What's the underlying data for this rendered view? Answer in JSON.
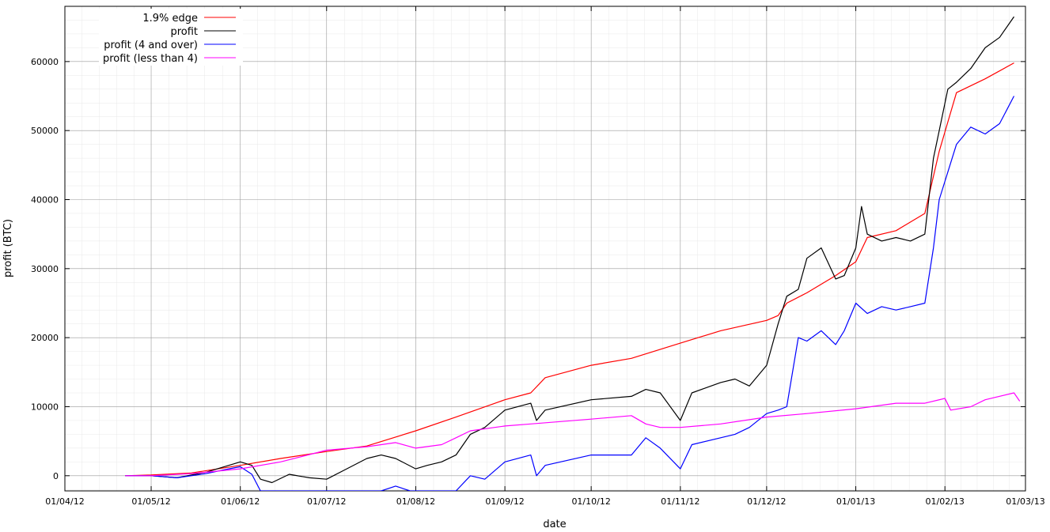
{
  "chart_data": {
    "type": "line",
    "xlabel": "date",
    "ylabel": "profit (BTC)",
    "x_ticks": [
      "01/04/12",
      "01/05/12",
      "01/06/12",
      "01/07/12",
      "01/08/12",
      "01/09/12",
      "01/10/12",
      "01/11/12",
      "01/12/12",
      "01/01/13",
      "01/02/13",
      "01/03/13"
    ],
    "y_ticks": [
      0,
      10000,
      20000,
      30000,
      40000,
      50000,
      60000
    ],
    "xlim": [
      "2012-04-01",
      "2013-03-01"
    ],
    "ylim": [
      -2200,
      68000
    ],
    "grid": true,
    "legend_position": "top-left",
    "colors": {
      "edge": "#ff0000",
      "profit": "#000000",
      "over4": "#0000ff",
      "under4": "#ff00ff"
    },
    "series": [
      {
        "name": "1.9% edge",
        "color": "#ff0000",
        "points": [
          [
            "2012-04-22",
            0
          ],
          [
            "2012-05-01",
            100
          ],
          [
            "2012-05-15",
            400
          ],
          [
            "2012-06-01",
            1500
          ],
          [
            "2012-06-15",
            2500
          ],
          [
            "2012-07-01",
            3500
          ],
          [
            "2012-07-15",
            4300
          ],
          [
            "2012-08-01",
            6500
          ],
          [
            "2012-08-15",
            8500
          ],
          [
            "2012-09-01",
            11000
          ],
          [
            "2012-09-10",
            12000
          ],
          [
            "2012-09-15",
            14200
          ],
          [
            "2012-10-01",
            16000
          ],
          [
            "2012-10-15",
            17000
          ],
          [
            "2012-11-01",
            19200
          ],
          [
            "2012-11-15",
            21000
          ],
          [
            "2012-12-01",
            22500
          ],
          [
            "2012-12-05",
            23200
          ],
          [
            "2012-12-08",
            25000
          ],
          [
            "2012-12-15",
            26500
          ],
          [
            "2012-12-25",
            29000
          ],
          [
            "2013-01-01",
            31000
          ],
          [
            "2013-01-05",
            34500
          ],
          [
            "2013-01-15",
            35500
          ],
          [
            "2013-01-25",
            38000
          ],
          [
            "2013-01-30",
            47000
          ],
          [
            "2013-02-05",
            55500
          ],
          [
            "2013-02-15",
            57500
          ],
          [
            "2013-02-25",
            59800
          ]
        ]
      },
      {
        "name": "profit",
        "color": "#000000",
        "points": [
          [
            "2012-04-22",
            0
          ],
          [
            "2012-05-01",
            0
          ],
          [
            "2012-05-10",
            -300
          ],
          [
            "2012-05-20",
            500
          ],
          [
            "2012-05-28",
            1500
          ],
          [
            "2012-06-01",
            2000
          ],
          [
            "2012-06-05",
            1500
          ],
          [
            "2012-06-08",
            -500
          ],
          [
            "2012-06-12",
            -1000
          ],
          [
            "2012-06-18",
            200
          ],
          [
            "2012-06-25",
            -300
          ],
          [
            "2012-07-01",
            -500
          ],
          [
            "2012-07-08",
            1000
          ],
          [
            "2012-07-15",
            2500
          ],
          [
            "2012-07-20",
            3000
          ],
          [
            "2012-07-25",
            2500
          ],
          [
            "2012-08-01",
            1000
          ],
          [
            "2012-08-05",
            1500
          ],
          [
            "2012-08-10",
            2000
          ],
          [
            "2012-08-15",
            3000
          ],
          [
            "2012-08-20",
            6000
          ],
          [
            "2012-08-25",
            7000
          ],
          [
            "2012-09-01",
            9500
          ],
          [
            "2012-09-10",
            10500
          ],
          [
            "2012-09-12",
            8000
          ],
          [
            "2012-09-15",
            9500
          ],
          [
            "2012-10-01",
            11000
          ],
          [
            "2012-10-15",
            11500
          ],
          [
            "2012-10-20",
            12500
          ],
          [
            "2012-10-25",
            12000
          ],
          [
            "2012-11-01",
            8000
          ],
          [
            "2012-11-05",
            12000
          ],
          [
            "2012-11-15",
            13500
          ],
          [
            "2012-11-20",
            14000
          ],
          [
            "2012-11-25",
            13000
          ],
          [
            "2012-12-01",
            16000
          ],
          [
            "2012-12-05",
            22000
          ],
          [
            "2012-12-08",
            26000
          ],
          [
            "2012-12-12",
            27000
          ],
          [
            "2012-12-15",
            31500
          ],
          [
            "2012-12-20",
            33000
          ],
          [
            "2012-12-25",
            28500
          ],
          [
            "2012-12-28",
            29000
          ],
          [
            "2013-01-01",
            33000
          ],
          [
            "2013-01-03",
            39000
          ],
          [
            "2013-01-05",
            35000
          ],
          [
            "2013-01-10",
            34000
          ],
          [
            "2013-01-15",
            34500
          ],
          [
            "2013-01-20",
            34000
          ],
          [
            "2013-01-25",
            35000
          ],
          [
            "2013-01-28",
            46000
          ],
          [
            "2013-01-30",
            50000
          ],
          [
            "2013-02-02",
            56000
          ],
          [
            "2013-02-05",
            57000
          ],
          [
            "2013-02-10",
            59000
          ],
          [
            "2013-02-15",
            62000
          ],
          [
            "2013-02-20",
            63500
          ],
          [
            "2013-02-25",
            66500
          ]
        ]
      },
      {
        "name": "profit (4 and over)",
        "color": "#0000ff",
        "points": [
          [
            "2012-04-22",
            0
          ],
          [
            "2012-05-01",
            0
          ],
          [
            "2012-05-10",
            -300
          ],
          [
            "2012-05-20",
            300
          ],
          [
            "2012-05-28",
            1000
          ],
          [
            "2012-06-01",
            1300
          ],
          [
            "2012-06-05",
            200
          ],
          [
            "2012-06-08",
            -2200
          ],
          [
            "2012-07-20",
            -2200
          ],
          [
            "2012-07-25",
            -1500
          ],
          [
            "2012-07-30",
            -2200
          ],
          [
            "2012-08-15",
            -2200
          ],
          [
            "2012-08-20",
            0
          ],
          [
            "2012-08-25",
            -500
          ],
          [
            "2012-09-01",
            2000
          ],
          [
            "2012-09-10",
            3000
          ],
          [
            "2012-09-12",
            0
          ],
          [
            "2012-09-15",
            1500
          ],
          [
            "2012-10-01",
            3000
          ],
          [
            "2012-10-15",
            3000
          ],
          [
            "2012-10-20",
            5500
          ],
          [
            "2012-10-25",
            4000
          ],
          [
            "2012-11-01",
            1000
          ],
          [
            "2012-11-05",
            4500
          ],
          [
            "2012-11-15",
            5500
          ],
          [
            "2012-11-20",
            6000
          ],
          [
            "2012-11-25",
            7000
          ],
          [
            "2012-12-01",
            9000
          ],
          [
            "2012-12-05",
            9500
          ],
          [
            "2012-12-08",
            10000
          ],
          [
            "2012-12-12",
            20000
          ],
          [
            "2012-12-15",
            19500
          ],
          [
            "2012-12-20",
            21000
          ],
          [
            "2012-12-25",
            19000
          ],
          [
            "2012-12-28",
            21000
          ],
          [
            "2013-01-01",
            25000
          ],
          [
            "2013-01-05",
            23500
          ],
          [
            "2013-01-10",
            24500
          ],
          [
            "2013-01-15",
            24000
          ],
          [
            "2013-01-20",
            24500
          ],
          [
            "2013-01-25",
            25000
          ],
          [
            "2013-01-28",
            33000
          ],
          [
            "2013-01-30",
            40000
          ],
          [
            "2013-02-02",
            44000
          ],
          [
            "2013-02-05",
            48000
          ],
          [
            "2013-02-10",
            50500
          ],
          [
            "2013-02-15",
            49500
          ],
          [
            "2013-02-20",
            51000
          ],
          [
            "2013-02-25",
            55000
          ]
        ]
      },
      {
        "name": "profit (less than 4)",
        "color": "#ff00ff",
        "points": [
          [
            "2012-04-22",
            0
          ],
          [
            "2012-05-01",
            0
          ],
          [
            "2012-05-15",
            300
          ],
          [
            "2012-06-01",
            1000
          ],
          [
            "2012-06-15",
            2000
          ],
          [
            "2012-07-01",
            3700
          ],
          [
            "2012-07-15",
            4200
          ],
          [
            "2012-07-25",
            4800
          ],
          [
            "2012-08-01",
            4000
          ],
          [
            "2012-08-10",
            4500
          ],
          [
            "2012-08-15",
            5500
          ],
          [
            "2012-08-20",
            6500
          ],
          [
            "2012-09-01",
            7200
          ],
          [
            "2012-09-10",
            7500
          ],
          [
            "2012-10-01",
            8200
          ],
          [
            "2012-10-15",
            8700
          ],
          [
            "2012-10-20",
            7500
          ],
          [
            "2012-10-25",
            7000
          ],
          [
            "2012-11-01",
            7000
          ],
          [
            "2012-11-15",
            7500
          ],
          [
            "2012-12-01",
            8500
          ],
          [
            "2012-12-15",
            9000
          ],
          [
            "2013-01-01",
            9700
          ],
          [
            "2013-01-15",
            10500
          ],
          [
            "2013-01-25",
            10500
          ],
          [
            "2013-02-01",
            11200
          ],
          [
            "2013-02-03",
            9500
          ],
          [
            "2013-02-10",
            10000
          ],
          [
            "2013-02-15",
            11000
          ],
          [
            "2013-02-25",
            12000
          ],
          [
            "2013-02-27",
            10800
          ]
        ]
      }
    ]
  }
}
